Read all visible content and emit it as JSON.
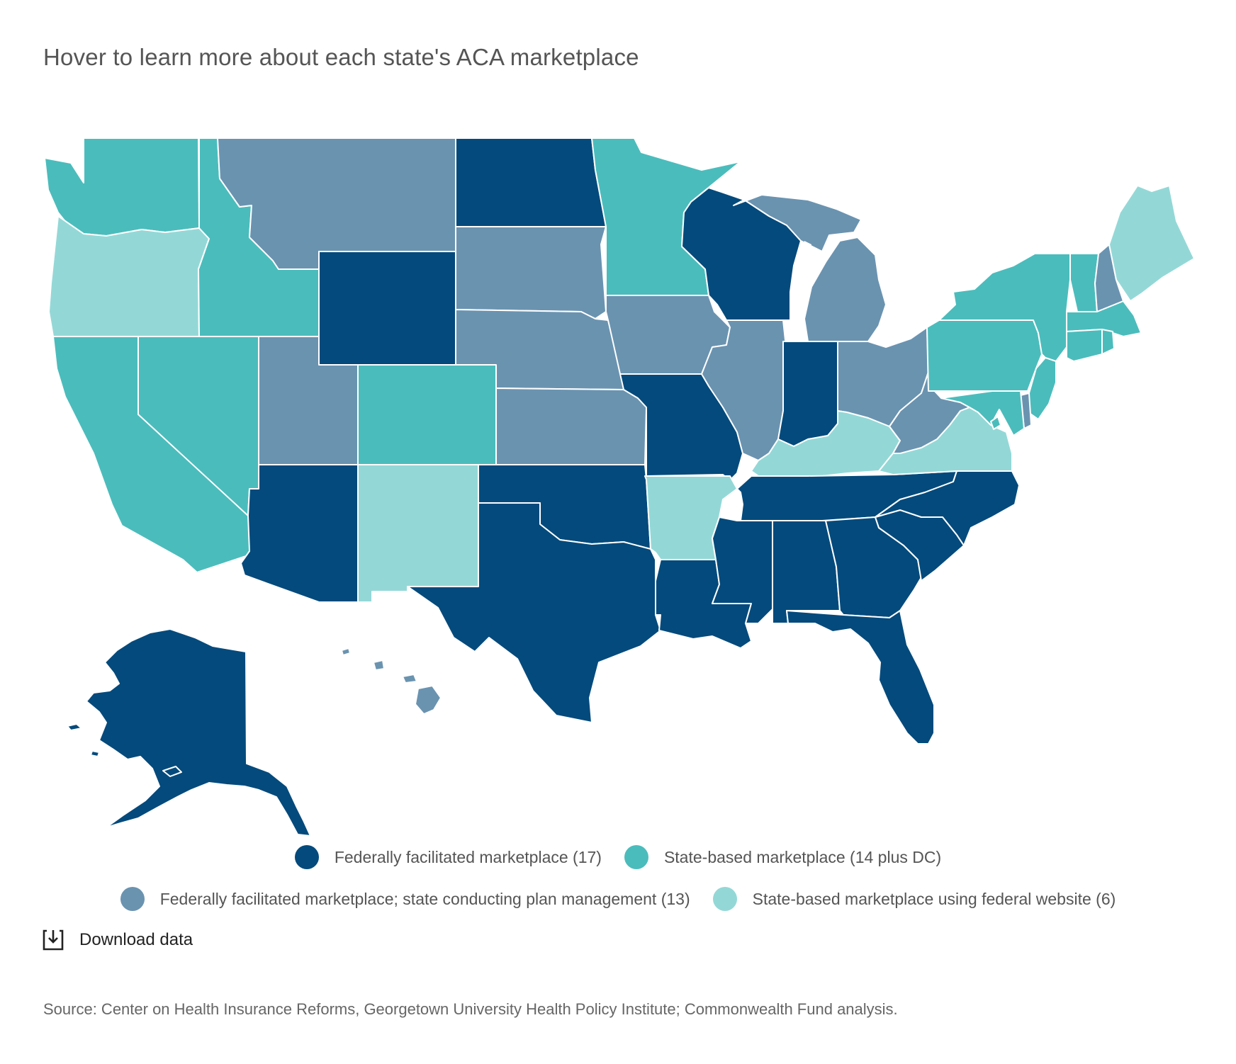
{
  "title": "Hover to learn more about each state's ACA marketplace",
  "colors": {
    "federal": "#044A7C",
    "state_based": "#4BBCBC",
    "plan_management": "#6A93B0",
    "state_federal_site": "#93D8D7"
  },
  "legend": [
    {
      "key": "federal",
      "label": "Federally facilitated marketplace (17)",
      "color": "#044A7C"
    },
    {
      "key": "state_based",
      "label": "State-based marketplace (14 plus DC)",
      "color": "#4BBCBC"
    },
    {
      "key": "plan_management",
      "label": "Federally facilitated marketplace; state conducting plan management (13)",
      "color": "#6A93B0"
    },
    {
      "key": "state_federal_site",
      "label": "State-based marketplace using federal website (6)",
      "color": "#93D8D7"
    }
  ],
  "states": [
    {
      "code": "WA",
      "category": "state_based"
    },
    {
      "code": "OR",
      "category": "state_federal_site"
    },
    {
      "code": "CA",
      "category": "state_based"
    },
    {
      "code": "NV",
      "category": "state_based"
    },
    {
      "code": "ID",
      "category": "state_based"
    },
    {
      "code": "MT",
      "category": "plan_management"
    },
    {
      "code": "WY",
      "category": "federal"
    },
    {
      "code": "UT",
      "category": "plan_management"
    },
    {
      "code": "AZ",
      "category": "federal"
    },
    {
      "code": "CO",
      "category": "state_based"
    },
    {
      "code": "NM",
      "category": "state_federal_site"
    },
    {
      "code": "ND",
      "category": "federal"
    },
    {
      "code": "SD",
      "category": "plan_management"
    },
    {
      "code": "NE",
      "category": "plan_management"
    },
    {
      "code": "KS",
      "category": "plan_management"
    },
    {
      "code": "OK",
      "category": "federal"
    },
    {
      "code": "TX",
      "category": "federal"
    },
    {
      "code": "MN",
      "category": "state_based"
    },
    {
      "code": "IA",
      "category": "plan_management"
    },
    {
      "code": "MO",
      "category": "federal"
    },
    {
      "code": "AR",
      "category": "state_federal_site"
    },
    {
      "code": "LA",
      "category": "federal"
    },
    {
      "code": "WI",
      "category": "federal"
    },
    {
      "code": "IL",
      "category": "plan_management"
    },
    {
      "code": "MI",
      "category": "plan_management"
    },
    {
      "code": "IN",
      "category": "federal"
    },
    {
      "code": "OH",
      "category": "plan_management"
    },
    {
      "code": "KY",
      "category": "state_federal_site"
    },
    {
      "code": "TN",
      "category": "federal"
    },
    {
      "code": "MS",
      "category": "federal"
    },
    {
      "code": "AL",
      "category": "federal"
    },
    {
      "code": "GA",
      "category": "federal"
    },
    {
      "code": "FL",
      "category": "federal"
    },
    {
      "code": "SC",
      "category": "federal"
    },
    {
      "code": "NC",
      "category": "federal"
    },
    {
      "code": "VA",
      "category": "state_federal_site"
    },
    {
      "code": "WV",
      "category": "plan_management"
    },
    {
      "code": "PA",
      "category": "state_based"
    },
    {
      "code": "NY",
      "category": "state_based"
    },
    {
      "code": "VT",
      "category": "state_based"
    },
    {
      "code": "NH",
      "category": "plan_management"
    },
    {
      "code": "ME",
      "category": "state_federal_site"
    },
    {
      "code": "MA",
      "category": "state_based"
    },
    {
      "code": "RI",
      "category": "state_based"
    },
    {
      "code": "CT",
      "category": "state_based"
    },
    {
      "code": "NJ",
      "category": "state_based"
    },
    {
      "code": "DE",
      "category": "plan_management"
    },
    {
      "code": "MD",
      "category": "state_based"
    },
    {
      "code": "DC",
      "category": "state_based"
    },
    {
      "code": "AK",
      "category": "federal"
    },
    {
      "code": "HI",
      "category": "plan_management"
    }
  ],
  "download_label": "Download data",
  "source": "Source: Center on Health Insurance Reforms, Georgetown University Health Policy Institute; Commonwealth Fund analysis."
}
